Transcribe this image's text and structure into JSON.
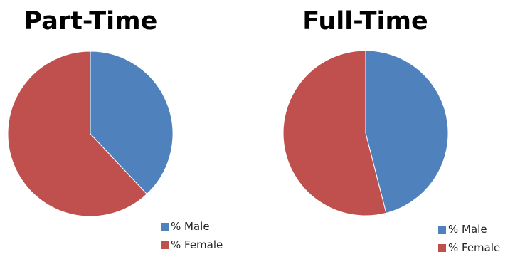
{
  "chart_data": [
    {
      "type": "pie",
      "title": "Part-Time",
      "categories": [
        "% Male",
        "% Female"
      ],
      "values": [
        38,
        62
      ],
      "colors": [
        "#4F81BD",
        "#C0504D"
      ],
      "legend": "bottom-right"
    },
    {
      "type": "pie",
      "title": "Full-Time",
      "categories": [
        "% Male",
        "% Female"
      ],
      "values": [
        46,
        54
      ],
      "colors": [
        "#4F81BD",
        "#C0504D"
      ],
      "legend": "bottom-right"
    }
  ]
}
